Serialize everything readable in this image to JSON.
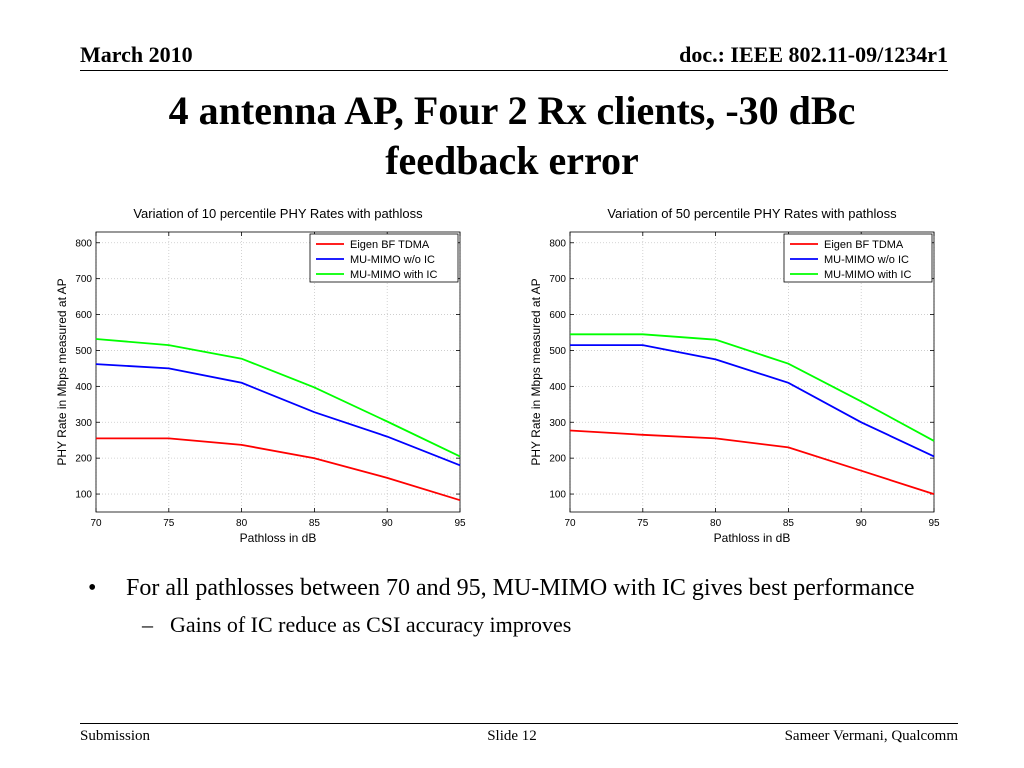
{
  "header": {
    "date": "March 2010",
    "doc": "doc.: IEEE 802.11-09/1234r1"
  },
  "title": {
    "line1": "4 antenna AP, Four 2 Rx clients, -30 dBc",
    "line2": "feedback error"
  },
  "colors": {
    "eigen": "#ff0000",
    "mu_wo_ic": "#0000ff",
    "mu_with_ic": "#00ff00"
  },
  "chart_data": [
    {
      "type": "line",
      "title": "Variation of 10 percentile PHY Rates with pathloss",
      "xlabel": "Pathloss in dB",
      "ylabel": "PHY Rate in Mbps measured at AP",
      "x": [
        70,
        75,
        80,
        85,
        90,
        95
      ],
      "xlim": [
        70,
        95
      ],
      "ylim": [
        50,
        830
      ],
      "xticks": [
        70,
        75,
        80,
        85,
        90,
        95
      ],
      "yticks": [
        100,
        200,
        300,
        400,
        500,
        600,
        700,
        800
      ],
      "grid": true,
      "legend_position": "top-right",
      "series": [
        {
          "name": "Eigen BF TDMA",
          "color": "#ff0000",
          "values": [
            255,
            255,
            237,
            200,
            145,
            83
          ]
        },
        {
          "name": "MU-MIMO w/o IC",
          "color": "#0000ff",
          "values": [
            462,
            450,
            410,
            328,
            260,
            180
          ]
        },
        {
          "name": "MU-MIMO with IC",
          "color": "#00ff00",
          "values": [
            532,
            515,
            477,
            397,
            302,
            205
          ]
        }
      ]
    },
    {
      "type": "line",
      "title": "Variation of 50 percentile PHY Rates with pathloss",
      "xlabel": "Pathloss in dB",
      "ylabel": "PHY Rate in Mbps measured at AP",
      "x": [
        70,
        75,
        80,
        85,
        90,
        95
      ],
      "xlim": [
        70,
        95
      ],
      "ylim": [
        50,
        830
      ],
      "xticks": [
        70,
        75,
        80,
        85,
        90,
        95
      ],
      "yticks": [
        100,
        200,
        300,
        400,
        500,
        600,
        700,
        800
      ],
      "grid": true,
      "legend_position": "top-right",
      "series": [
        {
          "name": "Eigen BF TDMA",
          "color": "#ff0000",
          "values": [
            277,
            265,
            255,
            230,
            165,
            100
          ]
        },
        {
          "name": "MU-MIMO w/o IC",
          "color": "#0000ff",
          "values": [
            515,
            515,
            475,
            410,
            300,
            205
          ]
        },
        {
          "name": "MU-MIMO with IC",
          "color": "#00ff00",
          "values": [
            545,
            545,
            530,
            463,
            358,
            248
          ]
        }
      ]
    }
  ],
  "bullets": {
    "main": "For all pathlosses between 70 and 95, MU-MIMO with IC gives best performance",
    "sub": "Gains of IC reduce as CSI accuracy improves",
    "main_marker": "•",
    "sub_marker": "–"
  },
  "footer": {
    "left": "Submission",
    "center": "Slide 12",
    "right": "Sameer Vermani, Qualcomm"
  }
}
